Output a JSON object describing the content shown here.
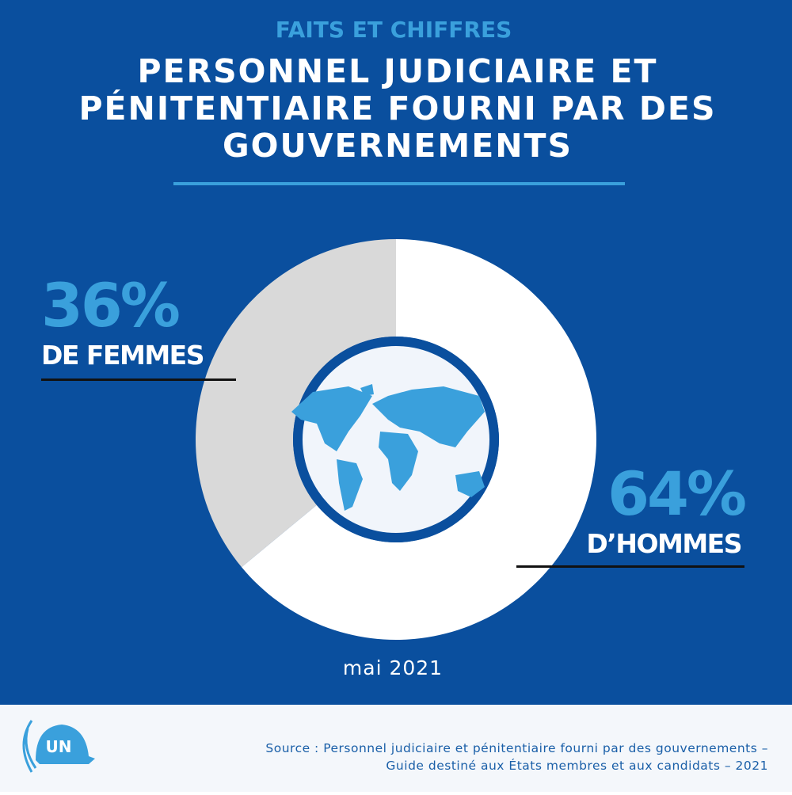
{
  "header": {
    "kicker": "FAITS ET CHIFFRES",
    "title": [
      "PERSONNEL JUDICIAIRE ET",
      "PÉNITENTIAIRE FOURNI PAR DES",
      "GOUVERNEMENTS"
    ]
  },
  "chart_data": {
    "type": "pie",
    "donut": true,
    "categories": [
      "DE FEMMES",
      "D’HOMMES"
    ],
    "values": [
      36,
      64
    ],
    "value_labels": [
      "36%",
      "64%"
    ],
    "colors": [
      "#d9d9d9",
      "#ffffff"
    ],
    "date": "mai 2021"
  },
  "footer": {
    "logo": "UN",
    "source": [
      "Source : Personnel judiciaire et pénitentiaire fourni par des gouvernements –",
      "Guide destiné aux États membres et aux candidats – 2021"
    ]
  }
}
